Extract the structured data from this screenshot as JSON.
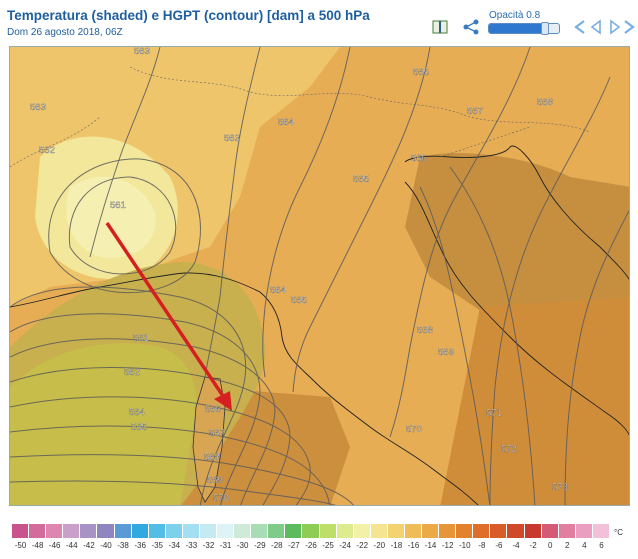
{
  "header": {
    "title": "Temperatura (shaded) e HGPT (contour) [dam] a 500 hPa",
    "subtitle": "Dom 26 agosto 2018, 06Z",
    "opacity_label": "Opacità",
    "opacity_value": "0.8"
  },
  "opacity": {
    "level": 0.8
  },
  "toolbar": {
    "icons": [
      "book-icon",
      "share-icon",
      "first-frame-icon",
      "previous-frame-icon",
      "next-frame-icon",
      "last-frame-icon"
    ]
  },
  "map": {
    "contour_labels": [
      {
        "id": "563a",
        "text": "563"
      },
      {
        "id": "565a",
        "text": "565"
      },
      {
        "id": "563b",
        "text": "563"
      },
      {
        "id": "567a",
        "text": "567"
      },
      {
        "id": "568a",
        "text": "568"
      },
      {
        "id": "562a",
        "text": "562"
      },
      {
        "id": "563c",
        "text": "563"
      },
      {
        "id": "564a",
        "text": "564"
      },
      {
        "id": "566a",
        "text": "566"
      },
      {
        "id": "565b",
        "text": "565"
      },
      {
        "id": "561a",
        "text": "561"
      },
      {
        "id": "564b",
        "text": "564"
      },
      {
        "id": "565c",
        "text": "565"
      },
      {
        "id": "561b",
        "text": "561"
      },
      {
        "id": "568b",
        "text": "568"
      },
      {
        "id": "569a",
        "text": "569"
      },
      {
        "id": "562b",
        "text": "562"
      },
      {
        "id": "564c",
        "text": "564"
      },
      {
        "id": "566b",
        "text": "566"
      },
      {
        "id": "565d",
        "text": "565"
      },
      {
        "id": "567b",
        "text": "567"
      },
      {
        "id": "570a",
        "text": "570"
      },
      {
        "id": "571a",
        "text": "571"
      },
      {
        "id": "568c",
        "text": "568"
      },
      {
        "id": "572a",
        "text": "572"
      },
      {
        "id": "569b",
        "text": "569"
      },
      {
        "id": "570b",
        "text": "570"
      },
      {
        "id": "573a",
        "text": "573"
      }
    ],
    "arrow_color": "#d42020"
  },
  "legend": {
    "unit": "°C",
    "ticks": [
      "-50",
      "-48",
      "-46",
      "-44",
      "-42",
      "-40",
      "-38",
      "-36",
      "-35",
      "-34",
      "-33",
      "-32",
      "-31",
      "-30",
      "-29",
      "-28",
      "-27",
      "-26",
      "-25",
      "-24",
      "-22",
      "-20",
      "-18",
      "-16",
      "-14",
      "-12",
      "-10",
      "-8",
      "-6",
      "-4",
      "-2",
      "0",
      "2",
      "4",
      "6"
    ],
    "colors": [
      "#c9548d",
      "#d36b9d",
      "#dd86af",
      "#c9a0c9",
      "#a894c4",
      "#8f86bf",
      "#5a9ad6",
      "#2fa9e0",
      "#54bde6",
      "#7fd0ea",
      "#a3dff0",
      "#c4ebf4",
      "#ddf3f5",
      "#cdebd6",
      "#a8dcb4",
      "#7fcc8a",
      "#5bbb5d",
      "#8fcc56",
      "#bede6a",
      "#dfeb8f",
      "#f3f1a8",
      "#f6e590",
      "#f2d271",
      "#efbd57",
      "#ebaa45",
      "#e69638",
      "#e2822f",
      "#de6e29",
      "#d85b28",
      "#d04a2a",
      "#c83a2e",
      "#d45a76",
      "#e07fa0",
      "#ea9ec0",
      "#f3c0da"
    ]
  }
}
